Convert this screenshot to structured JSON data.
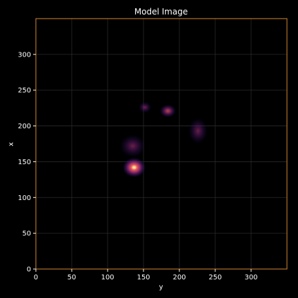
{
  "chart_data": {
    "type": "heatmap",
    "title": "Model Image",
    "xlabel": "y",
    "ylabel": "x",
    "xlim": [
      0,
      350
    ],
    "ylim": [
      0,
      350
    ],
    "xticks": [
      "0",
      "50",
      "100",
      "150",
      "200",
      "250",
      "300"
    ],
    "yticks": [
      "0",
      "50",
      "100",
      "150",
      "200",
      "250",
      "300"
    ],
    "grid": true,
    "colormap": "magma",
    "colors": {
      "background": "#000000",
      "frame": "#d4872f",
      "grid": "#2a2a2a",
      "text": "#ffffff"
    },
    "sources": [
      {
        "y": 137,
        "x": 142,
        "peak": 1.0,
        "sigma_y": 7,
        "sigma_x": 6
      },
      {
        "y": 135,
        "x": 172,
        "peak": 0.38,
        "sigma_y": 8,
        "sigma_x": 7
      },
      {
        "y": 152,
        "x": 226,
        "peak": 0.45,
        "sigma_y": 4,
        "sigma_x": 3.5
      },
      {
        "y": 184,
        "x": 221,
        "peak": 0.6,
        "sigma_y": 5,
        "sigma_x": 4
      },
      {
        "y": 226,
        "x": 193,
        "peak": 0.35,
        "sigma_y": 6,
        "sigma_x": 8
      }
    ]
  }
}
